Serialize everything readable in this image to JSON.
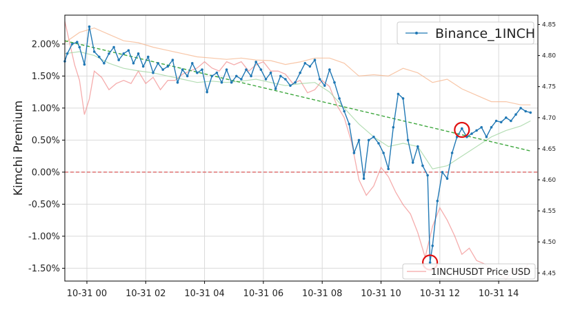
{
  "chart_data": {
    "type": "line",
    "title": "",
    "ylabel": "Kimchi Premium",
    "ylabel_right": "",
    "xlim": [
      "10-30 23:15",
      "10-31 15:20"
    ],
    "ylim": [
      -1.7,
      2.45
    ],
    "ylim_right": [
      4.437,
      4.865
    ],
    "x_ticks": [
      "10-31 00",
      "10-31 02",
      "10-31 04",
      "10-31 06",
      "10-31 08",
      "10-31 10",
      "10-31 12",
      "10-31 14"
    ],
    "y_ticks": [
      "2.00%",
      "1.50%",
      "1.00%",
      "0.50%",
      "0.00%",
      "-0.50%",
      "-1.00%",
      "-1.50%"
    ],
    "y_tick_values": [
      2.0,
      1.5,
      1.0,
      0.5,
      0.0,
      -0.5,
      -1.0,
      -1.5
    ],
    "right_ticks": [
      "4.85",
      "4.80",
      "4.75",
      "4.70",
      "4.65",
      "4.60",
      "4.55",
      "4.50",
      "4.45"
    ],
    "right_tick_values": [
      4.85,
      4.8,
      4.75,
      4.7,
      4.65,
      4.6,
      4.55,
      4.5,
      4.45
    ],
    "grid": true,
    "legend_main": {
      "label": "Binance_1INCH",
      "placement": "top-right"
    },
    "legend_price": {
      "label": "1INCHUSDT Price USD",
      "placement": "bottom-right"
    },
    "zero_line": 0.0,
    "trend_line": {
      "x": [
        "10-30 23:15",
        "10-31 15:05"
      ],
      "y": [
        2.05,
        0.33
      ]
    },
    "colors": {
      "premium": "#1f77b4",
      "price": "#f08080",
      "band_upper": "#f5b38a",
      "band_lower": "#9cd39c",
      "trend": "#3ca63c",
      "zero": "#d62728",
      "markers": "#e01010"
    },
    "markers": [
      {
        "x": "10-31 12:45",
        "y": 0.66
      },
      {
        "x": "10-31 11:40",
        "y": -1.41
      }
    ],
    "series": [
      {
        "name": "Binance_1INCH",
        "x": [
          "10-30 23:15",
          "10-30 23:20",
          "10-30 23:30",
          "10-30 23:40",
          "10-30 23:45",
          "10-30 23:55",
          "10-31 00:05",
          "10-31 00:15",
          "10-31 00:25",
          "10-31 00:35",
          "10-31 00:45",
          "10-31 00:55",
          "10-31 01:05",
          "10-31 01:15",
          "10-31 01:25",
          "10-31 01:35",
          "10-31 01:45",
          "10-31 01:55",
          "10-31 02:05",
          "10-31 02:15",
          "10-31 02:25",
          "10-31 02:35",
          "10-31 02:45",
          "10-31 02:55",
          "10-31 03:05",
          "10-31 03:15",
          "10-31 03:25",
          "10-31 03:35",
          "10-31 03:45",
          "10-31 03:55",
          "10-31 04:05",
          "10-31 04:15",
          "10-31 04:25",
          "10-31 04:35",
          "10-31 04:45",
          "10-31 04:55",
          "10-31 05:05",
          "10-31 05:15",
          "10-31 05:25",
          "10-31 05:35",
          "10-31 05:45",
          "10-31 05:55",
          "10-31 06:05",
          "10-31 06:15",
          "10-31 06:25",
          "10-31 06:35",
          "10-31 06:45",
          "10-31 06:55",
          "10-31 07:05",
          "10-31 07:15",
          "10-31 07:25",
          "10-31 07:35",
          "10-31 07:45",
          "10-31 07:55",
          "10-31 08:05",
          "10-31 08:15",
          "10-31 08:25",
          "10-31 08:35",
          "10-31 08:45",
          "10-31 08:55",
          "10-31 09:05",
          "10-31 09:15",
          "10-31 09:25",
          "10-31 09:35",
          "10-31 09:45",
          "10-31 09:55",
          "10-31 10:05",
          "10-31 10:15",
          "10-31 10:25",
          "10-31 10:35",
          "10-31 10:45",
          "10-31 10:55",
          "10-31 11:05",
          "10-31 11:15",
          "10-31 11:25",
          "10-31 11:35",
          "10-31 11:40",
          "10-31 11:45",
          "10-31 11:55",
          "10-31 12:05",
          "10-31 12:15",
          "10-31 12:25",
          "10-31 12:35",
          "10-31 12:45",
          "10-31 12:55",
          "10-31 13:05",
          "10-31 13:15",
          "10-31 13:25",
          "10-31 13:35",
          "10-31 13:45",
          "10-31 13:55",
          "10-31 14:05",
          "10-31 14:15",
          "10-31 14:25",
          "10-31 14:35",
          "10-31 14:45",
          "10-31 14:55",
          "10-31 15:05"
        ],
        "y": [
          1.73,
          1.85,
          2.0,
          2.03,
          1.95,
          1.68,
          2.27,
          1.88,
          1.8,
          1.7,
          1.85,
          1.95,
          1.75,
          1.85,
          1.9,
          1.7,
          1.85,
          1.65,
          1.8,
          1.55,
          1.7,
          1.6,
          1.65,
          1.75,
          1.4,
          1.6,
          1.5,
          1.7,
          1.55,
          1.6,
          1.25,
          1.5,
          1.55,
          1.4,
          1.6,
          1.4,
          1.5,
          1.45,
          1.6,
          1.5,
          1.72,
          1.6,
          1.45,
          1.55,
          1.3,
          1.5,
          1.45,
          1.35,
          1.4,
          1.55,
          1.7,
          1.65,
          1.75,
          1.45,
          1.35,
          1.6,
          1.4,
          1.15,
          0.95,
          0.75,
          0.3,
          0.5,
          -0.1,
          0.5,
          0.55,
          0.45,
          0.3,
          0.05,
          0.7,
          1.22,
          1.15,
          0.5,
          0.15,
          0.4,
          0.1,
          -0.05,
          -1.41,
          -1.15,
          -0.45,
          0.0,
          -0.1,
          0.3,
          0.55,
          0.68,
          0.55,
          0.6,
          0.65,
          0.7,
          0.55,
          0.7,
          0.8,
          0.78,
          0.85,
          0.8,
          0.9,
          1.0,
          0.95,
          0.93
        ]
      },
      {
        "name": "1INCHUSDT Price USD",
        "x": [
          "10-30 23:15",
          "10-30 23:25",
          "10-30 23:35",
          "10-30 23:45",
          "10-30 23:55",
          "10-31 00:05",
          "10-31 00:15",
          "10-31 00:30",
          "10-31 00:45",
          "10-31 01:00",
          "10-31 01:15",
          "10-31 01:30",
          "10-31 01:45",
          "10-31 02:00",
          "10-31 02:15",
          "10-31 02:30",
          "10-31 02:45",
          "10-31 03:00",
          "10-31 03:15",
          "10-31 03:30",
          "10-31 03:45",
          "10-31 04:00",
          "10-31 04:15",
          "10-31 04:30",
          "10-31 04:45",
          "10-31 05:00",
          "10-31 05:15",
          "10-31 05:30",
          "10-31 05:45",
          "10-31 06:00",
          "10-31 06:15",
          "10-31 06:30",
          "10-31 06:45",
          "10-31 07:00",
          "10-31 07:15",
          "10-31 07:30",
          "10-31 07:45",
          "10-31 08:00",
          "10-31 08:15",
          "10-31 08:30",
          "10-31 08:45",
          "10-31 09:00",
          "10-31 09:15",
          "10-31 09:30",
          "10-31 09:45",
          "10-31 10:00",
          "10-31 10:15",
          "10-31 10:30",
          "10-31 10:45",
          "10-31 11:00",
          "10-31 11:15",
          "10-31 11:30",
          "10-31 11:45",
          "10-31 12:00",
          "10-31 12:15",
          "10-31 12:30",
          "10-31 12:45",
          "10-31 13:00",
          "10-31 13:15",
          "10-31 13:30",
          "10-31 13:45",
          "10-31 14:00",
          "10-31 14:15",
          "10-31 14:30",
          "10-31 14:45",
          "10-31 15:00"
        ],
        "y": [
          4.855,
          4.82,
          4.785,
          4.76,
          4.705,
          4.73,
          4.775,
          4.765,
          4.745,
          4.755,
          4.76,
          4.755,
          4.775,
          4.755,
          4.765,
          4.745,
          4.76,
          4.76,
          4.77,
          4.775,
          4.78,
          4.79,
          4.78,
          4.775,
          4.79,
          4.785,
          4.79,
          4.775,
          4.785,
          4.79,
          4.775,
          4.775,
          4.77,
          4.755,
          4.76,
          4.74,
          4.745,
          4.76,
          4.75,
          4.72,
          4.7,
          4.66,
          4.6,
          4.575,
          4.59,
          4.62,
          4.605,
          4.58,
          4.56,
          4.545,
          4.515,
          4.475,
          4.525,
          4.555,
          4.535,
          4.51,
          4.48,
          4.49,
          4.47,
          4.465,
          4.455,
          4.45,
          4.44,
          4.455,
          4.445,
          4.465
        ]
      },
      {
        "name": "upper band",
        "x": [
          "10-30 23:15",
          "10-30 23:45",
          "10-31 00:15",
          "10-31 00:45",
          "10-31 01:15",
          "10-31 01:45",
          "10-31 02:15",
          "10-31 02:45",
          "10-31 03:15",
          "10-31 03:45",
          "10-31 04:15",
          "10-31 04:45",
          "10-31 05:15",
          "10-31 05:45",
          "10-31 06:15",
          "10-31 06:45",
          "10-31 07:15",
          "10-31 07:45",
          "10-31 08:15",
          "10-31 08:45",
          "10-31 09:15",
          "10-31 09:45",
          "10-31 10:15",
          "10-31 10:45",
          "10-31 11:15",
          "10-31 11:45",
          "10-31 12:15",
          "10-31 12:45",
          "10-31 13:15",
          "10-31 13:45",
          "10-31 14:15",
          "10-31 14:45",
          "10-31 15:05"
        ],
        "y": [
          2.02,
          2.18,
          2.25,
          2.15,
          2.05,
          2.02,
          1.95,
          1.9,
          1.85,
          1.8,
          1.78,
          1.76,
          1.78,
          1.75,
          1.74,
          1.68,
          1.72,
          1.78,
          1.78,
          1.7,
          1.5,
          1.52,
          1.5,
          1.62,
          1.55,
          1.4,
          1.45,
          1.3,
          1.2,
          1.1,
          1.1,
          1.05,
          1.05
        ]
      },
      {
        "name": "lower band",
        "x": [
          "10-30 23:15",
          "10-30 23:45",
          "10-31 00:15",
          "10-31 00:45",
          "10-31 01:15",
          "10-31 01:45",
          "10-31 02:15",
          "10-31 02:45",
          "10-31 03:15",
          "10-31 03:45",
          "10-31 04:15",
          "10-31 04:45",
          "10-31 05:15",
          "10-31 05:45",
          "10-31 06:15",
          "10-31 06:45",
          "10-31 07:15",
          "10-31 07:45",
          "10-31 08:15",
          "10-31 08:45",
          "10-31 09:15",
          "10-31 09:45",
          "10-31 10:15",
          "10-31 10:45",
          "10-31 11:15",
          "10-31 11:45",
          "10-31 12:15",
          "10-31 12:45",
          "10-31 13:15",
          "10-31 13:45",
          "10-31 14:15",
          "10-31 14:45",
          "10-31 15:05"
        ],
        "y": [
          1.85,
          1.88,
          1.82,
          1.7,
          1.62,
          1.58,
          1.55,
          1.5,
          1.45,
          1.4,
          1.42,
          1.4,
          1.42,
          1.45,
          1.4,
          1.35,
          1.38,
          1.4,
          1.25,
          1.0,
          0.75,
          0.55,
          0.4,
          0.45,
          0.4,
          0.05,
          0.1,
          0.25,
          0.4,
          0.55,
          0.65,
          0.72,
          0.8
        ]
      }
    ]
  }
}
